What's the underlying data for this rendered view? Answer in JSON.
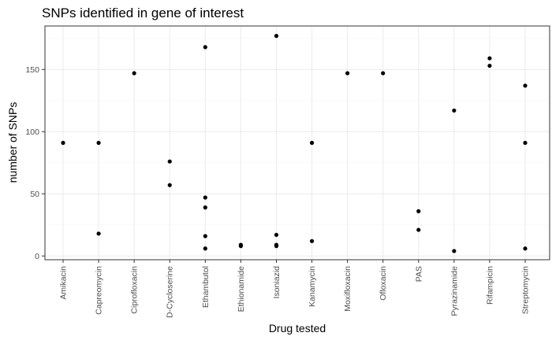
{
  "chart_data": {
    "type": "scatter",
    "title": "SNPs identified in gene of interest",
    "xlabel": "Drug tested",
    "ylabel": "number of SNPs",
    "categories": [
      "Amikacin",
      "Capreomycin",
      "Ciprofloxacin",
      "D-Cycloserine",
      "Ethambutol",
      "Ethionamide",
      "Isoniazid",
      "Kanamycin",
      "Moxifloxacin",
      "Ofloxacin",
      "PAS",
      "Pyrazinamide",
      "Rifampicin",
      "Streptomycin"
    ],
    "y_ticks": [
      0,
      50,
      100,
      150
    ],
    "ylim": [
      -3,
      185
    ],
    "grid": true,
    "legend": "none",
    "point_color": "#000000",
    "points": [
      {
        "x": "Amikacin",
        "y": 91
      },
      {
        "x": "Capreomycin",
        "y": 91
      },
      {
        "x": "Capreomycin",
        "y": 18
      },
      {
        "x": "Ciprofloxacin",
        "y": 147
      },
      {
        "x": "D-Cycloserine",
        "y": 76
      },
      {
        "x": "D-Cycloserine",
        "y": 57
      },
      {
        "x": "Ethambutol",
        "y": 168
      },
      {
        "x": "Ethambutol",
        "y": 47
      },
      {
        "x": "Ethambutol",
        "y": 39
      },
      {
        "x": "Ethambutol",
        "y": 16
      },
      {
        "x": "Ethambutol",
        "y": 6
      },
      {
        "x": "Ethionamide",
        "y": 9
      },
      {
        "x": "Ethionamide",
        "y": 8
      },
      {
        "x": "Isoniazid",
        "y": 177
      },
      {
        "x": "Isoniazid",
        "y": 17
      },
      {
        "x": "Isoniazid",
        "y": 9
      },
      {
        "x": "Isoniazid",
        "y": 8
      },
      {
        "x": "Kanamycin",
        "y": 91
      },
      {
        "x": "Kanamycin",
        "y": 12
      },
      {
        "x": "Moxifloxacin",
        "y": 147
      },
      {
        "x": "Ofloxacin",
        "y": 147
      },
      {
        "x": "PAS",
        "y": 36
      },
      {
        "x": "PAS",
        "y": 21
      },
      {
        "x": "Pyrazinamide",
        "y": 117
      },
      {
        "x": "Pyrazinamide",
        "y": 4
      },
      {
        "x": "Rifampicin",
        "y": 159
      },
      {
        "x": "Rifampicin",
        "y": 153
      },
      {
        "x": "Streptomycin",
        "y": 137
      },
      {
        "x": "Streptomycin",
        "y": 91
      },
      {
        "x": "Streptomycin",
        "y": 6
      }
    ]
  }
}
